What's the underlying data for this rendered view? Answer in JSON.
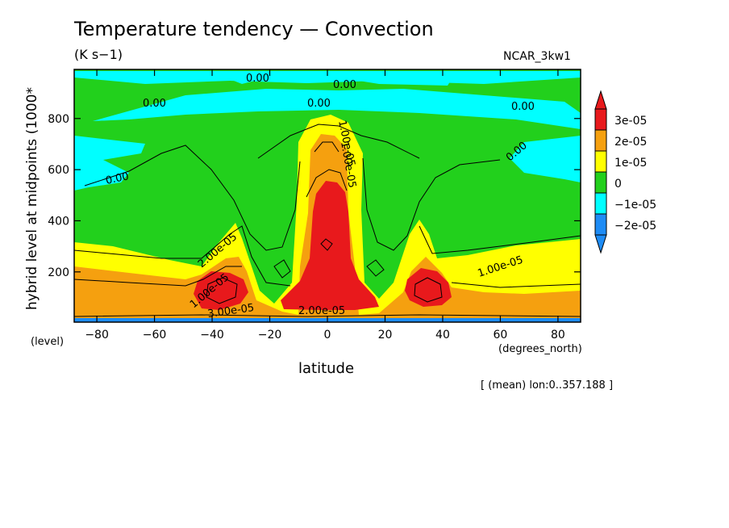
{
  "title": "Temperature tendency — Convection",
  "units": "(K s−1)",
  "model": "NCAR_3kw1",
  "mean_note": "[ (mean) lon:0..357.188 ]",
  "colors": {
    "c3e5": "#e8191c",
    "c2e5": "#f5a00f",
    "c1e5": "#ffff00",
    "c0": "#22d01c",
    "cm1e5": "#00ffff",
    "cm2e5": "#1e8cf5",
    "contour": "#000000"
  },
  "chart_data": {
    "type": "heatmap",
    "title": "Temperature tendency — Convection",
    "subtitle": "(K s−1)",
    "xlabel": "latitude",
    "x_unit_label": "(degrees_north)",
    "ylabel": "hybrid level at midpoints (1000*",
    "y_unit_label": "(level)",
    "xlim": [
      -87.86,
      87.86
    ],
    "ylim": [
      992,
      3.5
    ],
    "x_ticks": [
      -80,
      -60,
      -40,
      -20,
      0,
      20,
      40,
      60,
      80
    ],
    "y_ticks": [
      200,
      400,
      600,
      800
    ],
    "grid": false,
    "colorbar": {
      "position": "right",
      "levels": [
        {
          "label": "3e-05",
          "value": 3e-05
        },
        {
          "label": "2e-05",
          "value": 2e-05
        },
        {
          "label": "1e-05",
          "value": 1e-05
        },
        {
          "label": "0",
          "value": 0
        },
        {
          "label": "−1e-05",
          "value": -1e-05
        },
        {
          "label": "−2e-05",
          "value": -2e-05
        }
      ]
    },
    "contour_labels": [
      "0.00",
      "0.00",
      "0.00",
      "0.00",
      "0.00",
      "0.00",
      "0.00",
      "1.00e-05",
      "2.00e-05",
      "1.00e-05",
      "1.00e-05",
      "2.00e-05",
      "3.00e-05",
      "1.00e-05"
    ]
  }
}
